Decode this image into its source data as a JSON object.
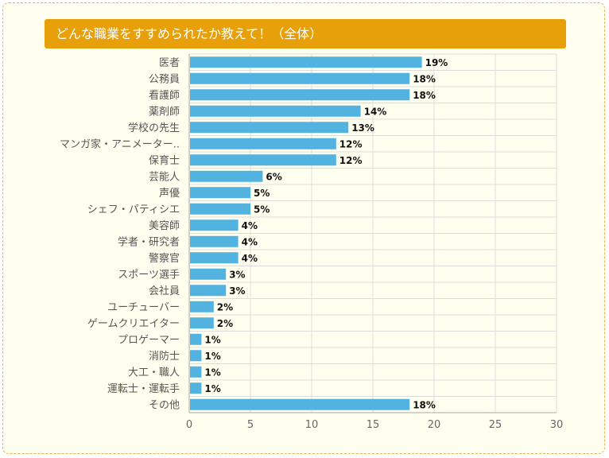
{
  "title": "どんな職業をすすめられたか教えて！（全体）",
  "colors": {
    "bar": "#52b2e0",
    "title_bg": "#e8a00a",
    "grid": "#dcdcdc",
    "card_bg": "#fffff0"
  },
  "chart_data": {
    "type": "bar",
    "orientation": "horizontal",
    "title": "どんな職業をすすめられたか教えて！（全体）",
    "categories": [
      "医者",
      "公務員",
      "看護師",
      "薬剤師",
      "学校の先生",
      "マンガ家・アニメーター..",
      "保育士",
      "芸能人",
      "声優",
      "シェフ・パティシエ",
      "美容師",
      "学者・研究者",
      "警察官",
      "スポーツ選手",
      "会社員",
      "ユーチューバー",
      "ゲームクリエイター",
      "プロゲーマー",
      "消防士",
      "大工・職人",
      "運転士・運転手",
      "その他"
    ],
    "values": [
      19,
      18,
      18,
      14,
      13,
      12,
      12,
      6,
      5,
      5,
      4,
      4,
      4,
      3,
      3,
      2,
      2,
      1,
      1,
      1,
      1,
      18
    ],
    "value_labels": [
      "19%",
      "18%",
      "18%",
      "14%",
      "13%",
      "12%",
      "12%",
      "6%",
      "5%",
      "5%",
      "4%",
      "4%",
      "4%",
      "3%",
      "3%",
      "2%",
      "2%",
      "1%",
      "1%",
      "1%",
      "1%",
      "18%"
    ],
    "xlim": [
      0,
      30
    ],
    "xticks": [
      0,
      5,
      10,
      15,
      20,
      25,
      30
    ],
    "grid": true,
    "legend": "none"
  }
}
